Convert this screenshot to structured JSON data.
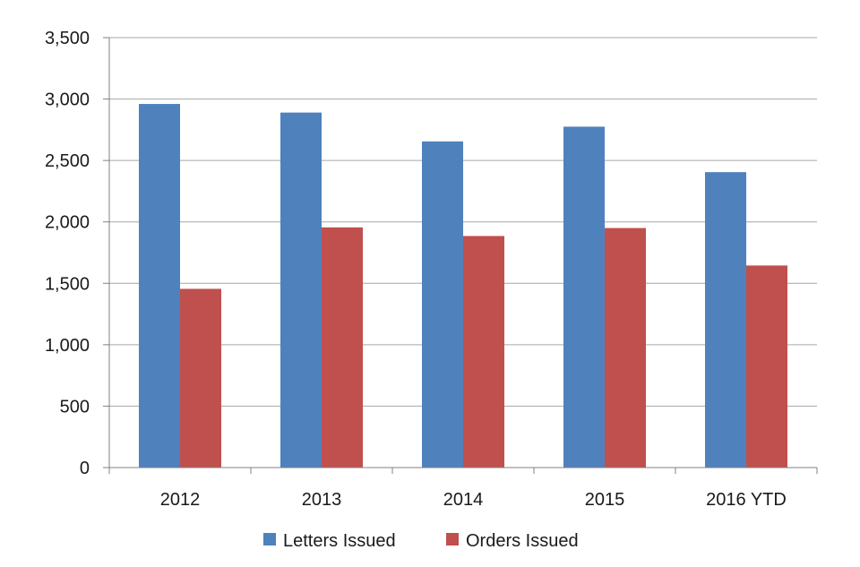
{
  "chart_data": {
    "type": "bar",
    "title": "",
    "xlabel": "",
    "ylabel": "",
    "categories": [
      "2012",
      "2013",
      "2014",
      "2015",
      "2016 YTD"
    ],
    "series": [
      {
        "name": "Letters Issued",
        "color": "#4f81bd",
        "values": [
          2960,
          2890,
          2655,
          2775,
          2405
        ]
      },
      {
        "name": "Orders Issued",
        "color": "#c0504d",
        "values": [
          1455,
          1955,
          1885,
          1950,
          1645
        ]
      }
    ],
    "ylim": [
      0,
      3500
    ],
    "yticks": [
      0,
      500,
      1000,
      1500,
      2000,
      2500,
      3000,
      3500
    ],
    "ytick_labels": [
      "0",
      "500",
      "1,000",
      "1,500",
      "2,000",
      "2,500",
      "3,000",
      "3,500"
    ],
    "grid": true,
    "legend_position": "bottom",
    "gridline_color": "#a6a6a6"
  }
}
